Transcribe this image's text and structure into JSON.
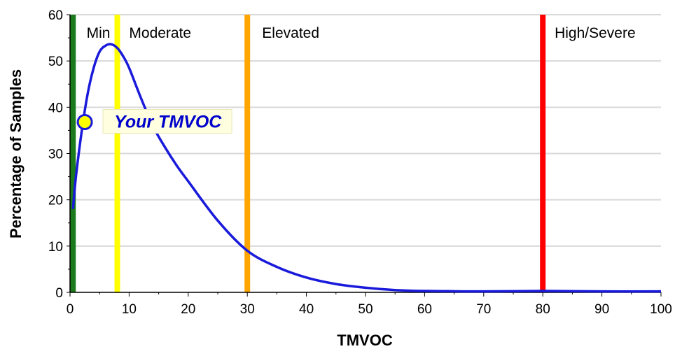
{
  "chart_data": {
    "type": "line",
    "title": "",
    "xlabel": "TMVOC",
    "ylabel": "Percentage of Samples",
    "xlim": [
      0,
      100
    ],
    "ylim": [
      0,
      60
    ],
    "x_ticks": [
      "0",
      "10",
      "20",
      "30",
      "40",
      "50",
      "60",
      "70",
      "80",
      "90",
      "100"
    ],
    "y_ticks": [
      "0",
      "10",
      "20",
      "30",
      "40",
      "50",
      "60"
    ],
    "grid": "horizontal",
    "series": [
      {
        "color": "#1a1adb",
        "points": [
          [
            0.5,
            18
          ],
          [
            1,
            25
          ],
          [
            2,
            35
          ],
          [
            3,
            43
          ],
          [
            4,
            48.5
          ],
          [
            5,
            52
          ],
          [
            6,
            53.3
          ],
          [
            7,
            53.6
          ],
          [
            8,
            52.8
          ],
          [
            9,
            51
          ],
          [
            10,
            48.5
          ],
          [
            12,
            42
          ],
          [
            14,
            36
          ],
          [
            16,
            31.5
          ],
          [
            18,
            27.5
          ],
          [
            20,
            24
          ],
          [
            25,
            15.5
          ],
          [
            30,
            9
          ],
          [
            35,
            5.5
          ],
          [
            40,
            3.2
          ],
          [
            45,
            1.8
          ],
          [
            50,
            1
          ],
          [
            55,
            0.5
          ],
          [
            60,
            0.3
          ],
          [
            70,
            0.2
          ],
          [
            80,
            0.3
          ],
          [
            90,
            0.2
          ],
          [
            100,
            0.2
          ]
        ]
      }
    ],
    "thresholds": [
      {
        "x": 0.5,
        "color": "#1b7a1b"
      },
      {
        "x": 8,
        "color": "#ffff00"
      },
      {
        "x": 30,
        "color": "#ffa500"
      },
      {
        "x": 80,
        "color": "#ff0000"
      }
    ],
    "zones": [
      {
        "label": "Min",
        "x": 2.8
      },
      {
        "label": "Moderate",
        "x": 10
      },
      {
        "label": "Elevated",
        "x": 32.5
      },
      {
        "label": "High/Severe",
        "x": 82
      }
    ],
    "marker": {
      "label": "Your TMVOC",
      "x": 2.5,
      "y": 36.8,
      "fill": "#ffff00",
      "stroke": "#1a1adb",
      "label_bg": "#ffffe0"
    }
  }
}
